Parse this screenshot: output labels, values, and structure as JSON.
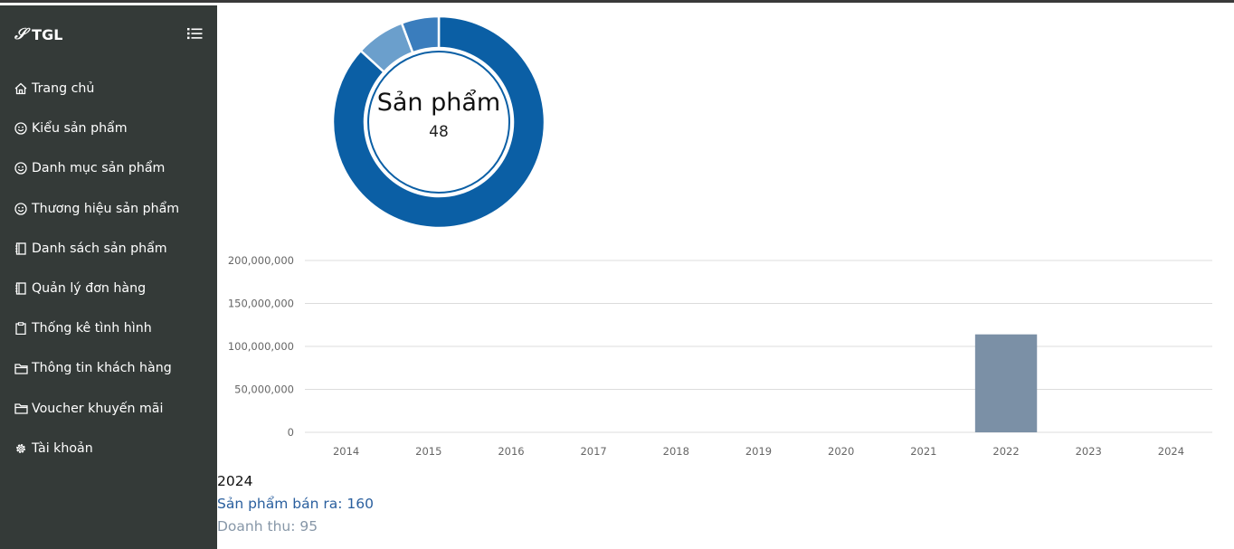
{
  "brand": {
    "logo_glyph": "𝒮",
    "name": "TGL"
  },
  "sidebar": {
    "items": [
      {
        "label": "Trang chủ",
        "icon": "home-icon"
      },
      {
        "label": "Kiểu sản phẩm",
        "icon": "smiley-icon"
      },
      {
        "label": "Danh mục sản phẩm",
        "icon": "smiley-icon"
      },
      {
        "label": "Thương hiệu sản phẩm",
        "icon": "smiley-icon"
      },
      {
        "label": "Danh sách sản phẩm",
        "icon": "journal-icon"
      },
      {
        "label": "Quản lý đơn hàng",
        "icon": "journal-icon"
      },
      {
        "label": "Thống kê tình hình",
        "icon": "clipboard-icon"
      },
      {
        "label": "Thông tin khách hàng",
        "icon": "folder-icon"
      },
      {
        "label": "Voucher khuyến mãi",
        "icon": "folder-icon"
      },
      {
        "label": "Tài khoản",
        "icon": "gear-icon"
      }
    ]
  },
  "donut": {
    "label": "Sản phẩm",
    "value": "48",
    "segments": [
      {
        "fraction": 0.868,
        "color": "#0b5fa5"
      },
      {
        "fraction": 0.075,
        "color": "#6b9fcc"
      },
      {
        "fraction": 0.057,
        "color": "#3a7dbd"
      }
    ]
  },
  "chart_data": {
    "type": "bar",
    "categories": [
      "2014",
      "2015",
      "2016",
      "2017",
      "2018",
      "2019",
      "2020",
      "2021",
      "2022",
      "2023",
      "2024"
    ],
    "values": [
      0,
      0,
      0,
      0,
      0,
      0,
      0,
      0,
      114000000,
      0,
      0
    ],
    "ylim": [
      0,
      200000000
    ],
    "yticks": [
      {
        "value": 0,
        "label": "0"
      },
      {
        "value": 50000000,
        "label": "50,000,000"
      },
      {
        "value": 100000000,
        "label": "100,000,000"
      },
      {
        "value": 150000000,
        "label": "150,000,000"
      },
      {
        "value": 200000000,
        "label": "200,000,000"
      }
    ],
    "bar_color": "#7b90a6",
    "grid": true
  },
  "summary": {
    "year": "2024",
    "sold": "Sản phẩm bán ra: 160",
    "revenue": "Doanh thu: 95"
  }
}
